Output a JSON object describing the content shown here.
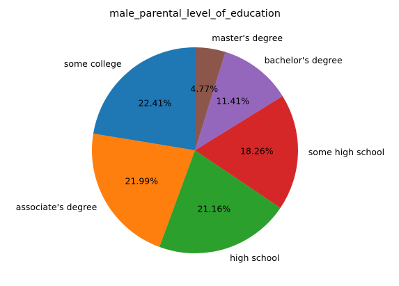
{
  "chart_data": {
    "type": "pie",
    "title": "male_parental_level_of_education",
    "slices": [
      {
        "label": "some college",
        "value": 22.41,
        "display": "22.41%",
        "color": "#1f77b4"
      },
      {
        "label": "associate's degree",
        "value": 21.99,
        "display": "21.99%",
        "color": "#ff7f0e"
      },
      {
        "label": "high school",
        "value": 21.16,
        "display": "21.16%",
        "color": "#2ca02c"
      },
      {
        "label": "some high school",
        "value": 18.26,
        "display": "18.26%",
        "color": "#d62728"
      },
      {
        "label": "bachelor's degree",
        "value": 11.41,
        "display": "11.41%",
        "color": "#9467bd"
      },
      {
        "label": "master's degree",
        "value": 4.77,
        "display": "4.77%",
        "color": "#8c564b"
      }
    ]
  }
}
